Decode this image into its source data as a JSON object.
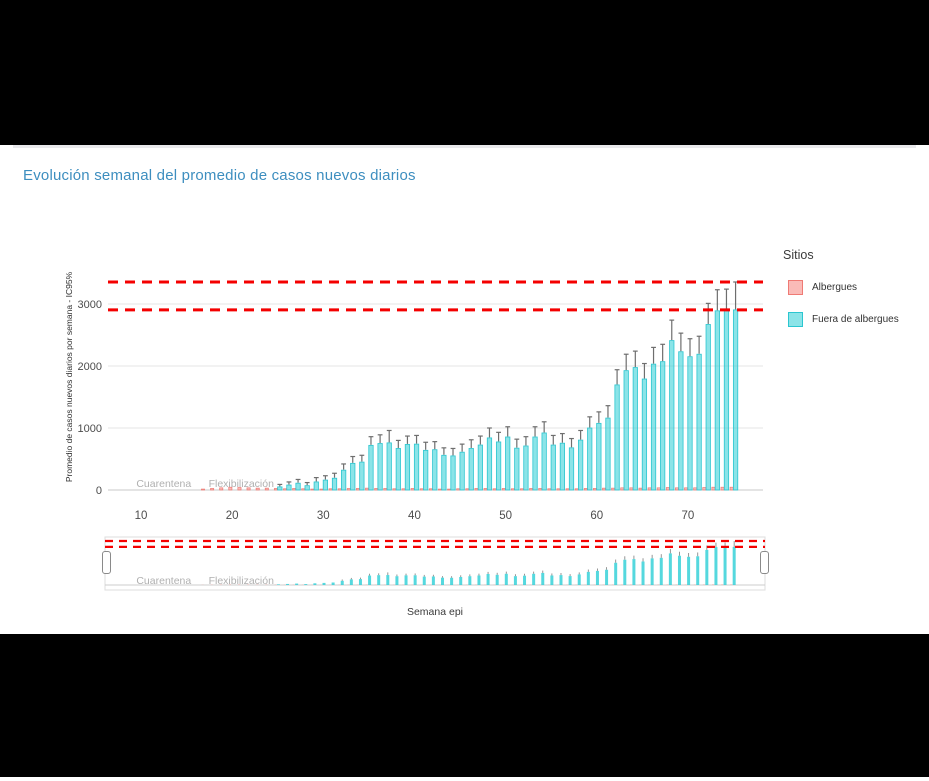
{
  "page": {
    "title": "Evolución semanal del promedio de casos nuevos diarios",
    "title_color": "#3d8ebf"
  },
  "legend": {
    "title": "Sitios",
    "items": [
      {
        "label": "Albergues",
        "fill": "rgba(246,131,125,0.55)",
        "stroke": "#ef7a74"
      },
      {
        "label": "Fuera de albergues",
        "fill": "rgba(43,206,214,0.55)",
        "stroke": "#2bc6d0"
      }
    ]
  },
  "chart_data": {
    "type": "bar",
    "title": "Evolución semanal del promedio de casos nuevos diarios",
    "xlabel": "Semana epi",
    "ylabel": "Promedio de casos nuevos diarios por semana - IC95%",
    "legend_title": "Sitios",
    "legend_position": "right",
    "grid": "horizontal",
    "x_ticks": [
      10,
      20,
      30,
      40,
      50,
      60,
      70
    ],
    "y_ticks": [
      0,
      1000,
      2000,
      3000
    ],
    "xlim": [
      6.5,
      78.5
    ],
    "ylim": [
      0,
      3600
    ],
    "has_rangeslider": true,
    "reference_lines": {
      "style": "dashed",
      "color": "#f40000",
      "values": [
        3355,
        2905
      ]
    },
    "annotations": [
      {
        "text": "Cuarentena",
        "week": 12.5
      },
      {
        "text": "Flexibilización",
        "week": 21
      }
    ],
    "series": [
      {
        "name": "Albergues",
        "weeks": [
          17,
          18,
          19,
          20,
          21,
          22,
          23,
          24,
          25,
          26,
          27,
          28,
          29,
          30,
          31,
          32,
          33,
          34,
          35,
          36,
          37,
          38,
          39,
          40,
          41,
          42,
          43,
          44,
          45,
          46,
          47,
          48,
          49,
          50,
          51,
          52,
          53,
          54,
          55,
          56,
          57,
          58,
          59,
          60,
          61,
          62,
          63,
          64,
          65,
          66,
          67,
          68,
          69,
          70,
          71,
          72,
          73,
          74,
          75
        ],
        "values": [
          15,
          25,
          35,
          45,
          40,
          35,
          30,
          30,
          25,
          20,
          25,
          20,
          15,
          15,
          20,
          20,
          25,
          25,
          30,
          25,
          25,
          20,
          20,
          25,
          20,
          20,
          15,
          15,
          20,
          20,
          25,
          25,
          20,
          25,
          20,
          20,
          25,
          25,
          20,
          20,
          20,
          20,
          25,
          25,
          30,
          30,
          35,
          35,
          30,
          35,
          35,
          40,
          35,
          35,
          35,
          40,
          45,
          45,
          45
        ]
      },
      {
        "name": "Fuera de albergues",
        "weeks": [
          25,
          26,
          27,
          28,
          29,
          30,
          31,
          32,
          33,
          34,
          35,
          36,
          37,
          38,
          39,
          40,
          41,
          42,
          43,
          44,
          45,
          46,
          47,
          48,
          49,
          50,
          51,
          52,
          53,
          54,
          55,
          56,
          57,
          58,
          59,
          60,
          61,
          62,
          63,
          64,
          65,
          66,
          67,
          68,
          69,
          70,
          71,
          72,
          73,
          74,
          75
        ],
        "values": [
          50,
          80,
          110,
          70,
          130,
          160,
          190,
          320,
          430,
          450,
          720,
          750,
          760,
          670,
          735,
          740,
          640,
          650,
          560,
          550,
          610,
          670,
          725,
          840,
          775,
          855,
          675,
          710,
          855,
          920,
          725,
          755,
          680,
          805,
          1000,
          1075,
          1160,
          1695,
          1925,
          1975,
          1790,
          2030,
          2070,
          2410,
          2230,
          2150,
          2190,
          2670,
          2890,
          2900,
          2905
        ],
        "ci_upper": [
          90,
          130,
          170,
          120,
          200,
          230,
          270,
          420,
          540,
          560,
          860,
          890,
          960,
          800,
          870,
          880,
          770,
          780,
          680,
          670,
          740,
          810,
          870,
          1000,
          930,
          1020,
          820,
          860,
          1020,
          1100,
          880,
          910,
          830,
          960,
          1180,
          1260,
          1360,
          1940,
          2190,
          2240,
          2040,
          2300,
          2350,
          2740,
          2530,
          2440,
          2480,
          3010,
          3230,
          3240,
          3355
        ]
      }
    ]
  }
}
